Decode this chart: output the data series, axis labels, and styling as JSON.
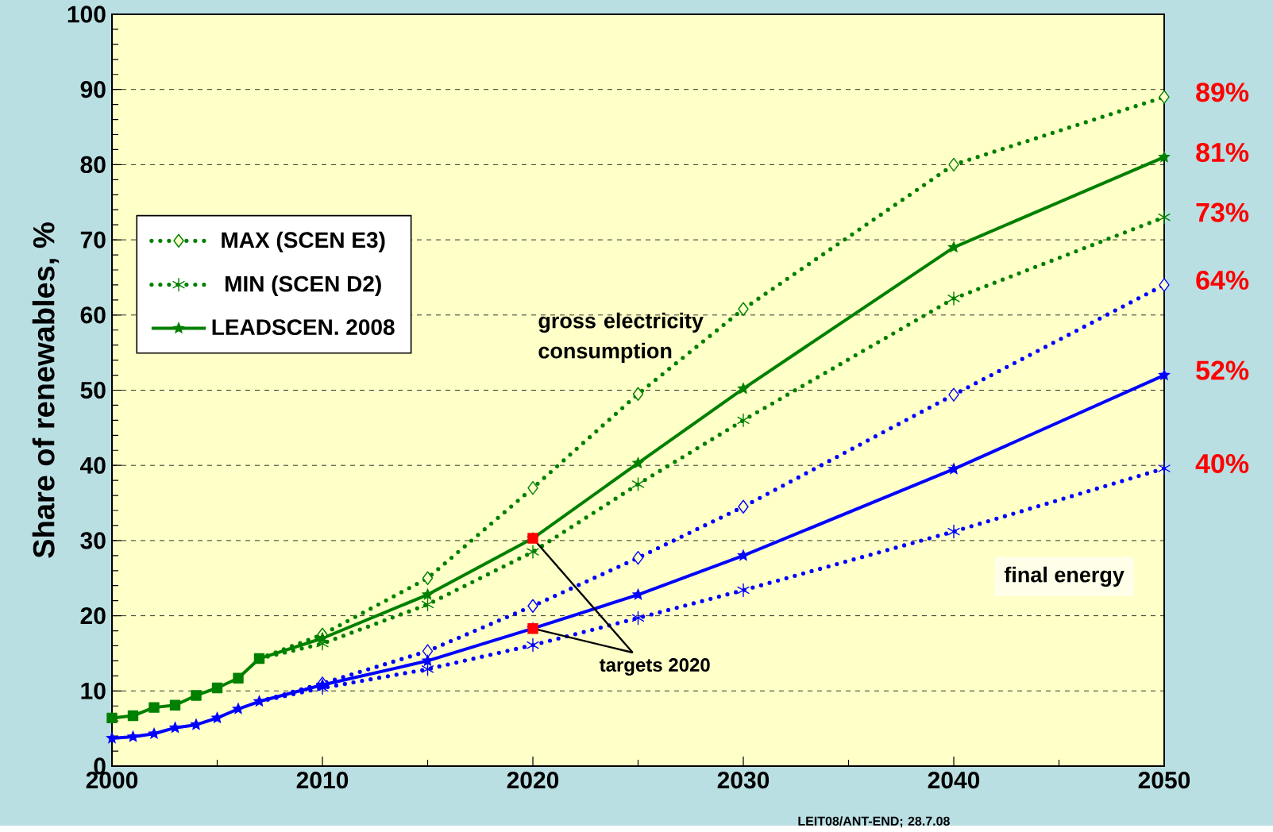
{
  "chart_data": {
    "type": "line",
    "ylabel": "Share of renewables, %",
    "xlim": [
      2000,
      2050
    ],
    "xticks": [
      2000,
      2010,
      2020,
      2030,
      2040,
      2050
    ],
    "ylim": [
      0,
      100
    ],
    "yticks": [
      0,
      10,
      20,
      30,
      40,
      50,
      60,
      70,
      80,
      90,
      100
    ],
    "grid": "y",
    "legend": "left",
    "annotations": [
      "gross electricity consumption",
      "final energy",
      {
        "text": "targets 2020",
        "x": 2020,
        "y": 18.3
      },
      "LEIT08/ANT-END; 28.7.08"
    ],
    "series": [
      {
        "color": "#008000",
        "marker": "square",
        "line_style": "solid",
        "x": [
          2000,
          2001,
          2002,
          2003,
          2004,
          2005,
          2006,
          2007
        ],
        "values": [
          6.4,
          6.7,
          7.8,
          8.1,
          9.4,
          10.4,
          11.7,
          14.3
        ]
      },
      {
        "color": "#0000ff",
        "marker": "star",
        "line_style": "solid",
        "x": [
          2000,
          2001,
          2002,
          2003,
          2004,
          2005,
          2006,
          2007
        ],
        "values": [
          3.7,
          3.9,
          4.3,
          5.1,
          5.5,
          6.4,
          7.6,
          8.6
        ]
      },
      {
        "name": "MAX (SCEN E3)",
        "color": "#008000",
        "marker": "diamond",
        "line_style": "dotted",
        "x": [
          2007,
          2010,
          2015,
          2020,
          2025,
          2030,
          2040,
          2050
        ],
        "values": [
          14.3,
          17.5,
          25,
          37,
          49.5,
          60.8,
          80,
          89
        ],
        "value_labels": [
          null,
          null,
          null,
          null,
          null,
          null,
          null,
          "89%"
        ]
      },
      {
        "name": "MIN (SCEN D2)",
        "color": "#008000",
        "marker": "cross",
        "line_style": "dotted",
        "x": [
          2007,
          2010,
          2015,
          2020,
          2025,
          2030,
          2040,
          2050
        ],
        "values": [
          14.3,
          16.3,
          21.5,
          28.5,
          37.5,
          46,
          62.2,
          73
        ],
        "value_labels": [
          null,
          null,
          null,
          null,
          null,
          null,
          null,
          "73%"
        ]
      },
      {
        "name": "LEADSCEN. 2008",
        "color": "#008000",
        "marker": "star",
        "line_style": "solid",
        "x": [
          2007,
          2010,
          2015,
          2020,
          2025,
          2030,
          2040,
          2050
        ],
        "values": [
          14.3,
          17,
          22.8,
          30.3,
          40.3,
          50.2,
          69,
          81
        ],
        "value_labels": [
          null,
          null,
          null,
          null,
          null,
          null,
          null,
          "81%"
        ]
      },
      {
        "color": "#0000ff",
        "marker": "diamond",
        "line_style": "dotted",
        "x": [
          2007,
          2010,
          2015,
          2020,
          2025,
          2030,
          2040,
          2050
        ],
        "values": [
          8.6,
          11,
          15.3,
          21.3,
          27.7,
          34.5,
          49.4,
          64
        ],
        "value_labels": [
          null,
          null,
          null,
          null,
          null,
          null,
          null,
          "64%"
        ]
      },
      {
        "color": "#0000ff",
        "marker": "cross",
        "line_style": "dotted",
        "x": [
          2007,
          2010,
          2015,
          2020,
          2025,
          2030,
          2040,
          2050
        ],
        "values": [
          8.6,
          10.4,
          12.9,
          16.1,
          19.7,
          23.4,
          31.2,
          39.6
        ],
        "value_labels": [
          null,
          null,
          null,
          null,
          null,
          null,
          null,
          "40%"
        ]
      },
      {
        "color": "#0000ff",
        "marker": "star",
        "line_style": "solid",
        "x": [
          2007,
          2010,
          2015,
          2020,
          2025,
          2030,
          2040,
          2050
        ],
        "values": [
          8.6,
          10.8,
          14,
          18.3,
          22.8,
          28,
          39.5,
          52
        ],
        "value_labels": [
          null,
          null,
          null,
          null,
          null,
          null,
          null,
          "52%"
        ]
      },
      {
        "type": "scatter",
        "color": "#ff0000",
        "marker": "square",
        "x": [
          2020,
          2020
        ],
        "values": [
          30.3,
          18.3
        ]
      }
    ]
  }
}
